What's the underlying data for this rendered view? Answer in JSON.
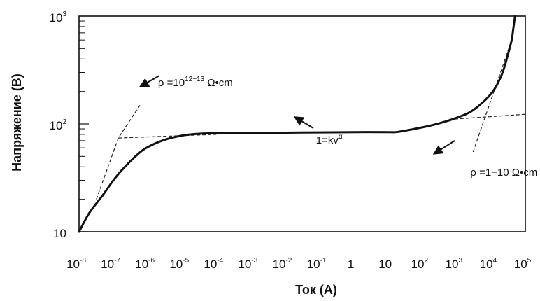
{
  "chart_data": {
    "type": "line",
    "xlabel": "Ток (А)",
    "ylabel": "Напряжение (В)",
    "xscale": "log",
    "yscale": "log",
    "xlim": [
      1e-08,
      100000.0
    ],
    "ylim": [
      10,
      1000
    ],
    "x_tick_labels": [
      {
        "value": 1e-08,
        "base": "10",
        "exp": "-8"
      },
      {
        "value": 1e-07,
        "base": "10",
        "exp": "-7"
      },
      {
        "value": 1e-06,
        "base": "10",
        "exp": "-6"
      },
      {
        "value": 1e-05,
        "base": "10",
        "exp": "-5"
      },
      {
        "value": 0.0001,
        "base": "10",
        "exp": "-4"
      },
      {
        "value": 0.001,
        "base": "10",
        "exp": "-3"
      },
      {
        "value": 0.01,
        "base": "10",
        "exp": "-2"
      },
      {
        "value": 0.1,
        "base": "10",
        "exp": "-1"
      },
      {
        "value": 1,
        "base": "1",
        "exp": ""
      },
      {
        "value": 10,
        "base": "10",
        "exp": ""
      },
      {
        "value": 100,
        "base": "10",
        "exp": "2"
      },
      {
        "value": 1000,
        "base": "10",
        "exp": "3"
      },
      {
        "value": 10000,
        "base": "10",
        "exp": "4"
      },
      {
        "value": 100000,
        "base": "10",
        "exp": "5"
      }
    ],
    "y_tick_labels": [
      {
        "value": 10,
        "base": "10",
        "exp": ""
      },
      {
        "value": 100,
        "base": "10",
        "exp": "2"
      },
      {
        "value": 1000,
        "base": "10",
        "exp": "3"
      }
    ],
    "series": [
      {
        "x": [
          1e-08,
          2e-08,
          5e-08,
          1e-07,
          2e-07,
          5e-07,
          1e-06,
          3e-06,
          1e-05,
          3e-05,
          0.0001,
          0.001,
          0.01,
          0.1,
          1,
          10,
          20,
          100,
          300,
          1000,
          3000,
          10000,
          20000,
          30000,
          40000,
          45000,
          50000
        ],
        "y": [
          10,
          15,
          22,
          30,
          39,
          52,
          61,
          71,
          78,
          81,
          82,
          82.5,
          83,
          83.5,
          84,
          84,
          84.5,
          93,
          101,
          114,
          134,
          190,
          280,
          420,
          600,
          780,
          1000
        ]
      }
    ],
    "dashed_lines": [
      {
        "x": [
          3.2e-08,
          1.4e-07,
          6e-07
        ],
        "y": [
          20,
          74,
          150
        ]
      },
      {
        "x": [
          1.4e-07,
          0.0001
        ],
        "y": [
          74,
          80
        ]
      },
      {
        "x": [
          600,
          100000
        ],
        "y": [
          110,
          123
        ]
      },
      {
        "x": [
          3000,
          40000
        ],
        "y": [
          55,
          600
        ]
      }
    ],
    "annotations": [
      {
        "prefix": "ρ =10",
        "sup": "12~13",
        "suffix": " Ω•cm",
        "x": 2e-06,
        "y": 224
      },
      {
        "prefix": "1=kv",
        "sup": "α",
        "suffix": "",
        "x": 0.08,
        "y": 66
      },
      {
        "prefix": "ρ =1−10 Ω•cm",
        "sup": "",
        "suffix": "",
        "x": 2500,
        "y": 33
      }
    ],
    "grid": false,
    "legend": "none"
  }
}
